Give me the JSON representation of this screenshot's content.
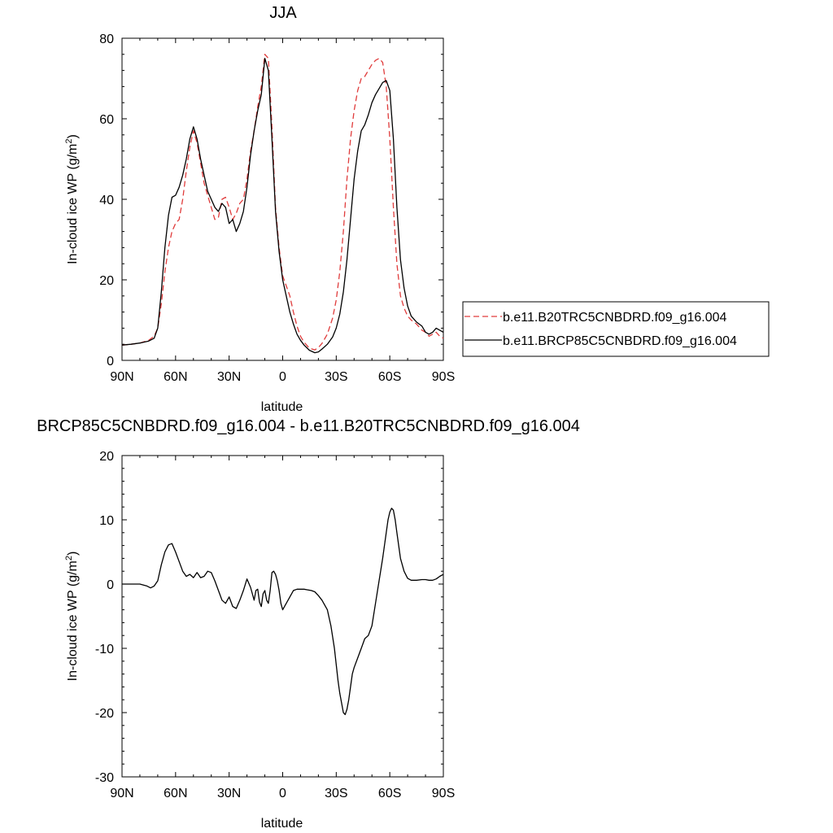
{
  "chart_data": [
    {
      "type": "line",
      "title": "JJA",
      "xlabel": "latitude",
      "ylabel": "In-cloud ice WP (g/m",
      "ylabel_sup": "2",
      "ylabel_tail": ")",
      "xlim": [
        90,
        -90
      ],
      "ylim": [
        0,
        80
      ],
      "x_ticks": [
        90,
        60,
        30,
        0,
        -30,
        -60,
        -90
      ],
      "x_tick_labels": [
        "90N",
        "60N",
        "30N",
        "0",
        "30S",
        "60S",
        "90S"
      ],
      "y_ticks": [
        0,
        20,
        40,
        60,
        80
      ],
      "y_tick_labels": [
        "0",
        "20",
        "40",
        "60",
        "80"
      ],
      "legend_position": "right",
      "series": [
        {
          "name": "b.e11.B20TRC5CNBDRD.f09_g16.004",
          "color": "#e03c3c",
          "dash": "dashed",
          "x": [
            90,
            85,
            80,
            75,
            72,
            70,
            68,
            66,
            64,
            62,
            60,
            58,
            56,
            54,
            52,
            50,
            48,
            46,
            44,
            42,
            40,
            38,
            36,
            34,
            32,
            30,
            28,
            26,
            24,
            22,
            20,
            18,
            16,
            14,
            12,
            10,
            8,
            6,
            4,
            2,
            0,
            -2,
            -4,
            -6,
            -8,
            -10,
            -12,
            -15,
            -18,
            -20,
            -22,
            -25,
            -28,
            -30,
            -32,
            -34,
            -36,
            -38,
            -40,
            -42,
            -44,
            -46,
            -48,
            -50,
            -52,
            -54,
            -56,
            -58,
            -60,
            -62,
            -64,
            -66,
            -68,
            -70,
            -72,
            -75,
            -78,
            -80,
            -82,
            -84,
            -86,
            -88,
            -90
          ],
          "y": [
            3.8,
            4.0,
            4.3,
            5.0,
            6.0,
            8.0,
            14.0,
            22.0,
            28.0,
            32.0,
            34.0,
            35.0,
            40.0,
            47.0,
            53.0,
            57.0,
            54.0,
            49.0,
            44.0,
            41.0,
            38.0,
            35.0,
            35.5,
            40.0,
            40.5,
            38.0,
            35.0,
            36.5,
            39.0,
            40.0,
            45.0,
            52.0,
            57.0,
            63.0,
            68.0,
            76.0,
            75.0,
            58.0,
            38.0,
            28.0,
            21.0,
            18.5,
            16.0,
            12.0,
            8.5,
            6.0,
            4.5,
            3.0,
            2.6,
            3.2,
            4.2,
            6.5,
            10.5,
            15.0,
            22.0,
            32.0,
            45.0,
            55.0,
            62.0,
            67.0,
            70.0,
            70.5,
            72.0,
            73.5,
            74.5,
            75.0,
            74.0,
            68.0,
            55.0,
            38.0,
            24.0,
            16.0,
            13.0,
            11.0,
            10.0,
            9.0,
            7.5,
            7.0,
            6.0,
            6.5,
            7.0,
            6.0,
            5.5
          ]
        },
        {
          "name": "b.e11.BRCP85C5CNBDRD.f09_g16.004",
          "color": "#000000",
          "dash": "solid",
          "x": [
            90,
            85,
            80,
            75,
            72,
            70,
            68,
            66,
            64,
            62,
            60,
            58,
            56,
            54,
            52,
            50,
            48,
            46,
            44,
            42,
            40,
            38,
            36,
            34,
            32,
            30,
            28,
            26,
            24,
            22,
            20,
            18,
            16,
            14,
            12,
            10,
            8,
            6,
            4,
            2,
            0,
            -2,
            -4,
            -6,
            -8,
            -10,
            -12,
            -15,
            -18,
            -20,
            -22,
            -25,
            -28,
            -30,
            -32,
            -34,
            -36,
            -38,
            -40,
            -42,
            -44,
            -46,
            -48,
            -50,
            -52,
            -54,
            -56,
            -58,
            -60,
            -62,
            -64,
            -66,
            -68,
            -70,
            -72,
            -75,
            -78,
            -80,
            -82,
            -84,
            -86,
            -88,
            -90
          ],
          "y": [
            3.8,
            4.0,
            4.3,
            4.8,
            5.5,
            8.0,
            17.0,
            28.0,
            36.0,
            40.5,
            41.0,
            43.0,
            46.0,
            50.0,
            55.0,
            58.0,
            55.0,
            50.0,
            46.0,
            42.0,
            40.0,
            38.0,
            37.0,
            39.0,
            38.0,
            34.0,
            35.0,
            32.0,
            34.0,
            37.0,
            43.0,
            51.0,
            57.0,
            62.0,
            66.0,
            75.0,
            72.0,
            55.0,
            37.0,
            27.0,
            20.0,
            16.0,
            12.0,
            9.0,
            6.5,
            5.0,
            3.8,
            2.5,
            1.9,
            2.1,
            2.8,
            4.0,
            5.8,
            8.0,
            11.5,
            17.0,
            25.0,
            35.0,
            45.0,
            52.0,
            57.0,
            58.5,
            61.0,
            64.0,
            66.0,
            67.5,
            69.0,
            69.5,
            67.0,
            55.0,
            38.0,
            25.0,
            18.0,
            13.5,
            11.0,
            9.5,
            8.5,
            7.0,
            6.5,
            7.0,
            8.0,
            7.5,
            7.0
          ]
        }
      ]
    },
    {
      "type": "line",
      "title": "BRCP85C5CNBDRD.f09_g16.004 - b.e11.B20TRC5CNBDRD.f09_g16.004",
      "xlabel": "latitude",
      "ylabel": "In-cloud ice WP (g/m",
      "ylabel_sup": "2",
      "ylabel_tail": ")",
      "xlim": [
        90,
        -90
      ],
      "ylim": [
        -30,
        20
      ],
      "x_ticks": [
        90,
        60,
        30,
        0,
        -30,
        -60,
        -90
      ],
      "x_tick_labels": [
        "90N",
        "60N",
        "30N",
        "0",
        "30S",
        "60S",
        "90S"
      ],
      "y_ticks": [
        -30,
        -20,
        -10,
        0,
        10,
        20
      ],
      "y_tick_labels": [
        "-30",
        "-20",
        "-10",
        "0",
        "10",
        "20"
      ],
      "series": [
        {
          "color": "#000000",
          "dash": "solid",
          "x": [
            90,
            85,
            80,
            76,
            74,
            72,
            70,
            68,
            66,
            64,
            62,
            60,
            58,
            56,
            54,
            52,
            50,
            48,
            46,
            44,
            42,
            40,
            38,
            36,
            34,
            32,
            30,
            28,
            26,
            24,
            22,
            20,
            18,
            16,
            15,
            14,
            13,
            12,
            11,
            10,
            9,
            8,
            7,
            6,
            5,
            4,
            3,
            2,
            1,
            0,
            -2,
            -4,
            -6,
            -8,
            -10,
            -12,
            -14,
            -16,
            -18,
            -20,
            -22,
            -25,
            -27,
            -29,
            -30,
            -31,
            -32,
            -33,
            -34,
            -35,
            -36,
            -37,
            -38,
            -39,
            -40,
            -42,
            -44,
            -46,
            -48,
            -50,
            -52,
            -54,
            -56,
            -58,
            -59,
            -60,
            -61,
            -62,
            -63,
            -64,
            -65,
            -66,
            -68,
            -70,
            -72,
            -75,
            -78,
            -80,
            -82,
            -84,
            -86,
            -88,
            -90
          ],
          "y": [
            0,
            0,
            0,
            -0.3,
            -0.6,
            -0.3,
            0.5,
            3.0,
            5.0,
            6.1,
            6.3,
            5.0,
            3.5,
            2.0,
            1.2,
            1.5,
            1.0,
            1.8,
            1.0,
            1.2,
            2.0,
            1.8,
            0.5,
            -1.0,
            -2.5,
            -3.0,
            -2.0,
            -3.5,
            -3.8,
            -2.5,
            -1.0,
            0.8,
            -0.5,
            -2.5,
            -1.0,
            -0.8,
            -2.8,
            -3.5,
            -1.5,
            -1.0,
            -2.5,
            -3.0,
            -1.0,
            1.8,
            2.0,
            1.5,
            0.5,
            -1.0,
            -3.0,
            -4.0,
            -3.0,
            -2.0,
            -1.0,
            -0.8,
            -0.8,
            -0.8,
            -0.9,
            -1.0,
            -1.2,
            -1.8,
            -2.5,
            -4.0,
            -6.5,
            -10.0,
            -12.5,
            -15.0,
            -17.0,
            -18.5,
            -20.0,
            -20.3,
            -19.5,
            -18.0,
            -16.0,
            -14.0,
            -13.0,
            -11.5,
            -10.0,
            -8.5,
            -8.0,
            -6.5,
            -3.0,
            0.5,
            4.0,
            8.0,
            10.0,
            11.2,
            11.8,
            11.5,
            10.0,
            8.0,
            6.0,
            4.0,
            2.0,
            0.9,
            0.6,
            0.6,
            0.7,
            0.7,
            0.6,
            0.6,
            0.8,
            1.2,
            1.5
          ]
        }
      ]
    }
  ]
}
